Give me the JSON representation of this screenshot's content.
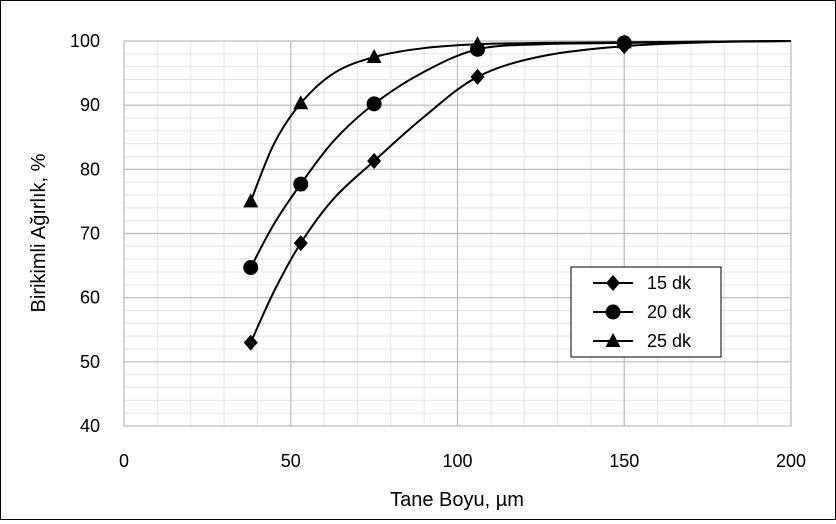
{
  "chart_data": {
    "type": "line",
    "title": "",
    "xlabel": "Tane Boyu, µm",
    "ylabel": "Birikimli Ağırlık, %",
    "xlim": [
      0,
      200
    ],
    "ylim": [
      40,
      100
    ],
    "xticks": [
      0,
      50,
      100,
      150,
      200
    ],
    "yticks": [
      40,
      50,
      60,
      70,
      80,
      90,
      100
    ],
    "xticklabels": [
      "0",
      "50",
      "100",
      "150",
      "200"
    ],
    "yticklabels": [
      "40",
      "50",
      "60",
      "70",
      "80",
      "90",
      "100"
    ],
    "grid": true,
    "legend_position": "right",
    "line_color": "#000000",
    "series": [
      {
        "name": "15 dk",
        "marker": "diamond",
        "x": [
          38,
          53,
          75,
          106,
          150
        ],
        "y": [
          53,
          68.5,
          81.3,
          94.4,
          99.2
        ],
        "curve_x": [
          38,
          45,
          53,
          63,
          75,
          90,
          106,
          125,
          150,
          175,
          200
        ],
        "curve_y": [
          53,
          61,
          68.5,
          75.5,
          81.3,
          88.2,
          94.4,
          97.6,
          99.2,
          99.8,
          100
        ]
      },
      {
        "name": "20 dk",
        "marker": "circle",
        "x": [
          38,
          53,
          75,
          106,
          150
        ],
        "y": [
          64.7,
          77.7,
          90.2,
          98.7,
          99.7
        ],
        "curve_x": [
          38,
          45,
          53,
          63,
          75,
          90,
          106,
          125,
          150,
          175,
          200
        ],
        "curve_y": [
          64.7,
          71.5,
          77.7,
          84.5,
          90.2,
          95.2,
          98.7,
          99.5,
          99.7,
          99.9,
          100
        ]
      },
      {
        "name": "25 dk",
        "marker": "triangle",
        "x": [
          38,
          53,
          75,
          106,
          150
        ],
        "y": [
          75,
          90.3,
          97.5,
          99.5,
          99.8
        ],
        "curve_x": [
          38,
          45,
          53,
          63,
          75,
          90,
          106,
          125,
          150,
          175,
          200
        ],
        "curve_y": [
          75,
          84,
          90.3,
          95,
          97.5,
          98.9,
          99.5,
          99.7,
          99.8,
          99.9,
          100
        ]
      }
    ]
  }
}
